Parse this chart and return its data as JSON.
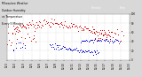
{
  "bg_color": "#d8d8d8",
  "plot_bg_color": "#ffffff",
  "grid_color": "#b8b8b8",
  "red_color": "#cc0000",
  "blue_color": "#0000cc",
  "legend_red_label": "Humidity",
  "legend_blue_label": "Temp",
  "figsize": [
    1.6,
    0.87
  ],
  "dpi": 100,
  "title_lines": [
    "Milwaukee Weather",
    "Outdoor Humidity",
    "vs Temperature",
    "Every 5 Minutes"
  ]
}
